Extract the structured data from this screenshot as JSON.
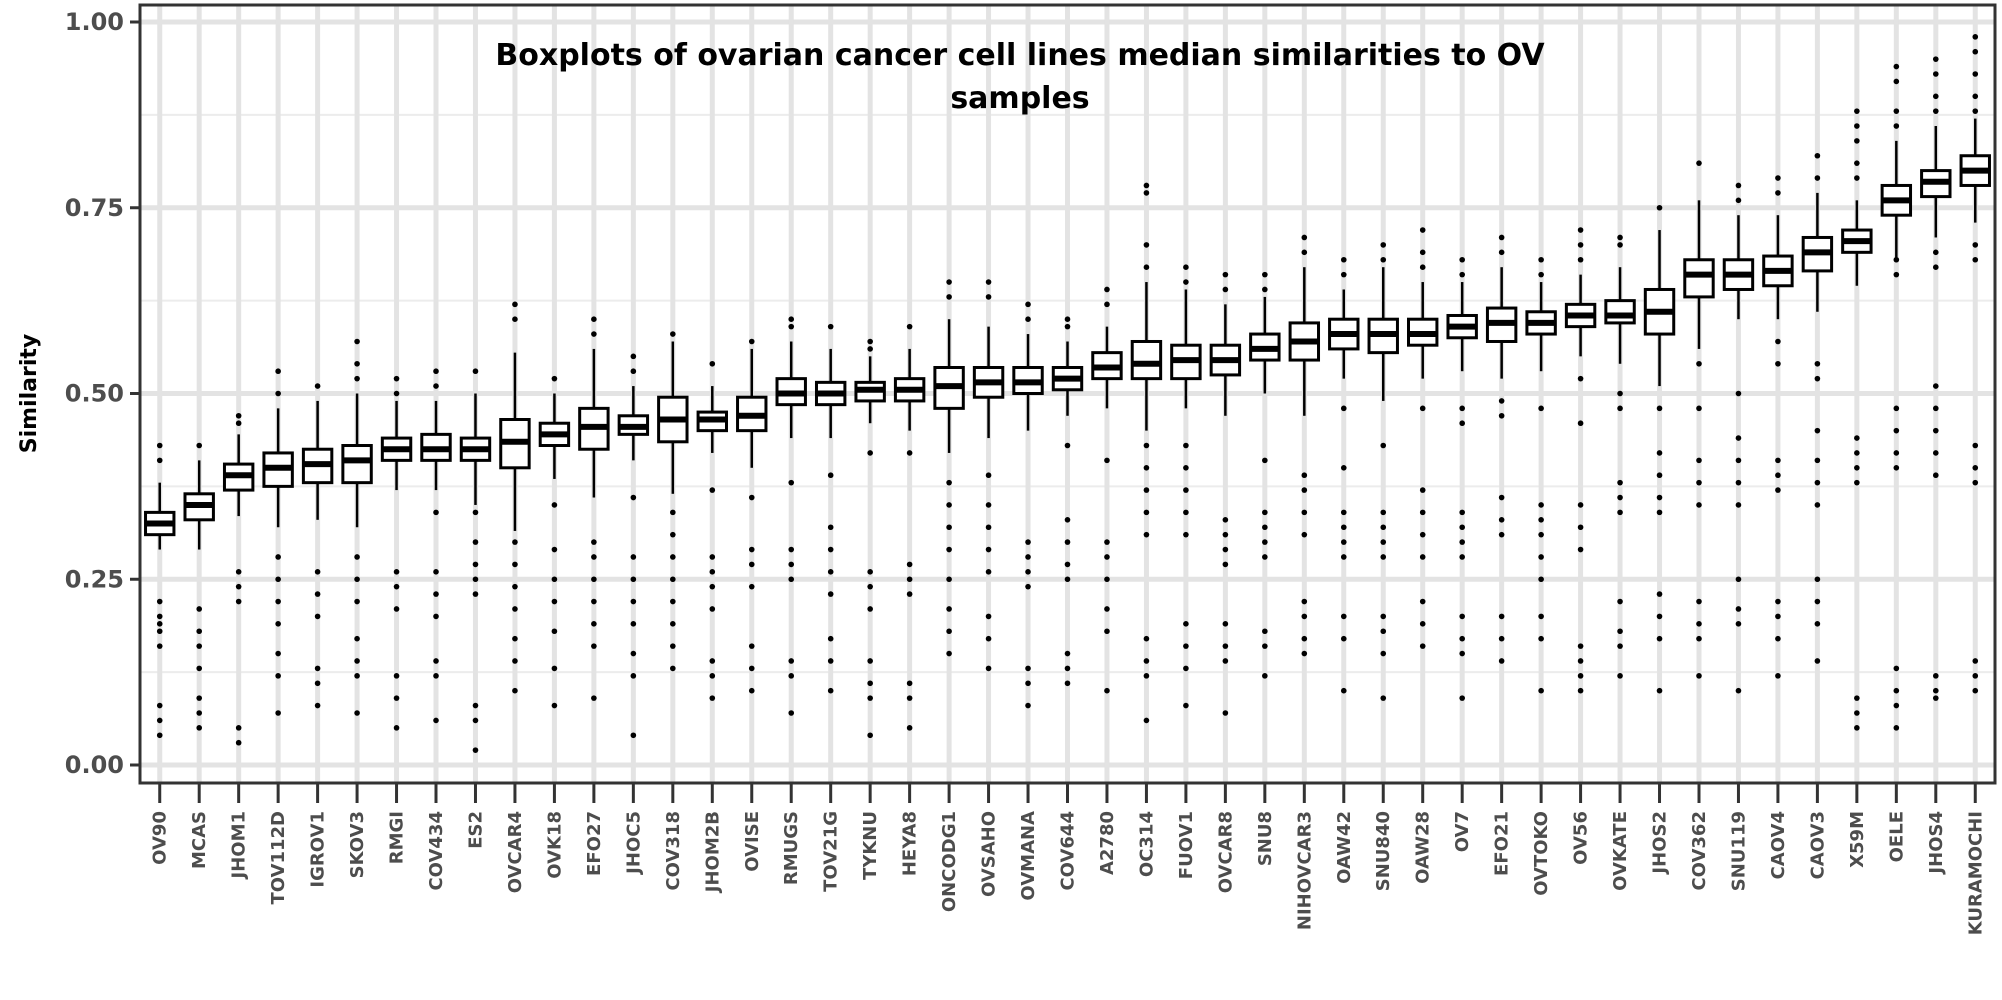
{
  "chart_data": {
    "type": "boxplot",
    "title_lines": [
      "Boxplots of ovarian cancer cell lines median similarities to OV",
      "samples"
    ],
    "xlabel": "",
    "ylabel": "Similarity",
    "ylim": [
      0,
      1
    ],
    "yticks": [
      0,
      0.25,
      0.5,
      0.75,
      1
    ],
    "ytick_labels": [
      "0.00",
      "0.25",
      "0.50",
      "0.75",
      "1.00"
    ],
    "grid": true,
    "categories": [
      "OV90",
      "MCAS",
      "JHOM1",
      "TOV112D",
      "IGROV1",
      "SKOV3",
      "RMGI",
      "COV434",
      "ES2",
      "OVCAR4",
      "OVK18",
      "EFO27",
      "JHOC5",
      "COV318",
      "JHOM2B",
      "OVISE",
      "RMUGS",
      "TOV21G",
      "TYKNU",
      "HEYA8",
      "ONCODG1",
      "OVSAHO",
      "OVMANA",
      "COV644",
      "A2780",
      "OC314",
      "FUOV1",
      "OVCAR8",
      "SNU8",
      "NIHOVCAR3",
      "OAW42",
      "SNU840",
      "OAW28",
      "OV7",
      "EFO21",
      "OVTOKO",
      "OV56",
      "OVKATE",
      "JHOS2",
      "COV362",
      "SNU119",
      "CAOV4",
      "CAOV3",
      "X59M",
      "OELE",
      "JHOS4",
      "KURAMOCHI"
    ],
    "boxes": [
      {
        "q1": 0.31,
        "median": 0.325,
        "q3": 0.34,
        "whislo": 0.29,
        "whishi": 0.38,
        "outliers": [
          0.43,
          0.41,
          0.22,
          0.2,
          0.19,
          0.18,
          0.16,
          0.08,
          0.06,
          0.04
        ]
      },
      {
        "q1": 0.33,
        "median": 0.35,
        "q3": 0.365,
        "whislo": 0.29,
        "whishi": 0.41,
        "outliers": [
          0.43,
          0.21,
          0.18,
          0.16,
          0.13,
          0.09,
          0.07,
          0.05
        ]
      },
      {
        "q1": 0.37,
        "median": 0.39,
        "q3": 0.405,
        "whislo": 0.335,
        "whishi": 0.445,
        "outliers": [
          0.47,
          0.46,
          0.26,
          0.24,
          0.22,
          0.05,
          0.03
        ]
      },
      {
        "q1": 0.375,
        "median": 0.4,
        "q3": 0.42,
        "whislo": 0.32,
        "whishi": 0.48,
        "outliers": [
          0.53,
          0.5,
          0.28,
          0.25,
          0.22,
          0.19,
          0.15,
          0.12,
          0.07
        ]
      },
      {
        "q1": 0.38,
        "median": 0.405,
        "q3": 0.425,
        "whislo": 0.33,
        "whishi": 0.49,
        "outliers": [
          0.51,
          0.26,
          0.23,
          0.2,
          0.13,
          0.11,
          0.08
        ]
      },
      {
        "q1": 0.38,
        "median": 0.41,
        "q3": 0.43,
        "whislo": 0.32,
        "whishi": 0.5,
        "outliers": [
          0.57,
          0.54,
          0.52,
          0.28,
          0.25,
          0.22,
          0.17,
          0.14,
          0.12,
          0.07
        ]
      },
      {
        "q1": 0.41,
        "median": 0.425,
        "q3": 0.44,
        "whislo": 0.37,
        "whishi": 0.49,
        "outliers": [
          0.52,
          0.5,
          0.26,
          0.24,
          0.21,
          0.12,
          0.09,
          0.05
        ]
      },
      {
        "q1": 0.41,
        "median": 0.425,
        "q3": 0.445,
        "whislo": 0.37,
        "whishi": 0.49,
        "outliers": [
          0.53,
          0.51,
          0.34,
          0.26,
          0.23,
          0.2,
          0.14,
          0.12,
          0.06
        ]
      },
      {
        "q1": 0.41,
        "median": 0.425,
        "q3": 0.44,
        "whislo": 0.35,
        "whishi": 0.5,
        "outliers": [
          0.53,
          0.34,
          0.3,
          0.27,
          0.25,
          0.23,
          0.08,
          0.06,
          0.02
        ]
      },
      {
        "q1": 0.4,
        "median": 0.435,
        "q3": 0.465,
        "whislo": 0.315,
        "whishi": 0.555,
        "outliers": [
          0.62,
          0.6,
          0.3,
          0.27,
          0.24,
          0.21,
          0.17,
          0.14,
          0.1
        ]
      },
      {
        "q1": 0.43,
        "median": 0.445,
        "q3": 0.46,
        "whislo": 0.385,
        "whishi": 0.5,
        "outliers": [
          0.52,
          0.35,
          0.29,
          0.25,
          0.22,
          0.18,
          0.13,
          0.08
        ]
      },
      {
        "q1": 0.425,
        "median": 0.455,
        "q3": 0.48,
        "whislo": 0.36,
        "whishi": 0.56,
        "outliers": [
          0.6,
          0.58,
          0.3,
          0.28,
          0.25,
          0.22,
          0.19,
          0.16,
          0.09
        ]
      },
      {
        "q1": 0.445,
        "median": 0.455,
        "q3": 0.47,
        "whislo": 0.41,
        "whishi": 0.51,
        "outliers": [
          0.55,
          0.53,
          0.36,
          0.28,
          0.25,
          0.22,
          0.19,
          0.15,
          0.12,
          0.04
        ]
      },
      {
        "q1": 0.435,
        "median": 0.465,
        "q3": 0.495,
        "whislo": 0.365,
        "whishi": 0.57,
        "outliers": [
          0.58,
          0.34,
          0.31,
          0.28,
          0.25,
          0.22,
          0.19,
          0.16,
          0.13
        ]
      },
      {
        "q1": 0.45,
        "median": 0.465,
        "q3": 0.475,
        "whislo": 0.42,
        "whishi": 0.51,
        "outliers": [
          0.54,
          0.37,
          0.28,
          0.26,
          0.24,
          0.21,
          0.14,
          0.12,
          0.09
        ]
      },
      {
        "q1": 0.45,
        "median": 0.47,
        "q3": 0.495,
        "whislo": 0.4,
        "whishi": 0.56,
        "outliers": [
          0.57,
          0.36,
          0.29,
          0.27,
          0.24,
          0.16,
          0.13,
          0.1
        ]
      },
      {
        "q1": 0.485,
        "median": 0.5,
        "q3": 0.52,
        "whislo": 0.44,
        "whishi": 0.57,
        "outliers": [
          0.6,
          0.59,
          0.38,
          0.29,
          0.27,
          0.25,
          0.14,
          0.12,
          0.07
        ]
      },
      {
        "q1": 0.485,
        "median": 0.5,
        "q3": 0.515,
        "whislo": 0.44,
        "whishi": 0.56,
        "outliers": [
          0.59,
          0.39,
          0.32,
          0.29,
          0.26,
          0.23,
          0.17,
          0.14,
          0.1
        ]
      },
      {
        "q1": 0.49,
        "median": 0.505,
        "q3": 0.515,
        "whislo": 0.46,
        "whishi": 0.55,
        "outliers": [
          0.57,
          0.56,
          0.42,
          0.26,
          0.24,
          0.21,
          0.14,
          0.11,
          0.09,
          0.04
        ]
      },
      {
        "q1": 0.49,
        "median": 0.505,
        "q3": 0.52,
        "whislo": 0.45,
        "whishi": 0.56,
        "outliers": [
          0.59,
          0.42,
          0.27,
          0.25,
          0.23,
          0.11,
          0.09,
          0.05
        ]
      },
      {
        "q1": 0.48,
        "median": 0.51,
        "q3": 0.535,
        "whislo": 0.42,
        "whishi": 0.6,
        "outliers": [
          0.65,
          0.63,
          0.38,
          0.35,
          0.32,
          0.29,
          0.25,
          0.21,
          0.18,
          0.15
        ]
      },
      {
        "q1": 0.495,
        "median": 0.515,
        "q3": 0.535,
        "whislo": 0.44,
        "whishi": 0.59,
        "outliers": [
          0.65,
          0.63,
          0.39,
          0.35,
          0.32,
          0.29,
          0.26,
          0.2,
          0.17,
          0.13
        ]
      },
      {
        "q1": 0.5,
        "median": 0.515,
        "q3": 0.535,
        "whislo": 0.45,
        "whishi": 0.58,
        "outliers": [
          0.62,
          0.6,
          0.3,
          0.28,
          0.26,
          0.24,
          0.13,
          0.11,
          0.08
        ]
      },
      {
        "q1": 0.505,
        "median": 0.52,
        "q3": 0.535,
        "whislo": 0.47,
        "whishi": 0.57,
        "outliers": [
          0.6,
          0.59,
          0.43,
          0.33,
          0.3,
          0.27,
          0.25,
          0.15,
          0.13,
          0.11
        ]
      },
      {
        "q1": 0.52,
        "median": 0.535,
        "q3": 0.555,
        "whislo": 0.48,
        "whishi": 0.59,
        "outliers": [
          0.64,
          0.62,
          0.41,
          0.3,
          0.28,
          0.25,
          0.21,
          0.18,
          0.1
        ]
      },
      {
        "q1": 0.52,
        "median": 0.54,
        "q3": 0.57,
        "whislo": 0.45,
        "whishi": 0.65,
        "outliers": [
          0.78,
          0.77,
          0.7,
          0.67,
          0.43,
          0.4,
          0.37,
          0.34,
          0.31,
          0.17,
          0.14,
          0.12,
          0.06
        ]
      },
      {
        "q1": 0.52,
        "median": 0.545,
        "q3": 0.565,
        "whislo": 0.48,
        "whishi": 0.64,
        "outliers": [
          0.67,
          0.65,
          0.43,
          0.4,
          0.37,
          0.34,
          0.31,
          0.19,
          0.16,
          0.13,
          0.08
        ]
      },
      {
        "q1": 0.525,
        "median": 0.545,
        "q3": 0.565,
        "whislo": 0.47,
        "whishi": 0.62,
        "outliers": [
          0.66,
          0.64,
          0.33,
          0.31,
          0.29,
          0.27,
          0.19,
          0.16,
          0.14,
          0.07
        ]
      },
      {
        "q1": 0.545,
        "median": 0.56,
        "q3": 0.58,
        "whislo": 0.5,
        "whishi": 0.63,
        "outliers": [
          0.66,
          0.64,
          0.41,
          0.34,
          0.32,
          0.3,
          0.28,
          0.18,
          0.16,
          0.12
        ]
      },
      {
        "q1": 0.545,
        "median": 0.57,
        "q3": 0.595,
        "whislo": 0.47,
        "whishi": 0.67,
        "outliers": [
          0.71,
          0.69,
          0.39,
          0.37,
          0.34,
          0.31,
          0.22,
          0.2,
          0.17,
          0.15
        ]
      },
      {
        "q1": 0.56,
        "median": 0.58,
        "q3": 0.6,
        "whislo": 0.52,
        "whishi": 0.64,
        "outliers": [
          0.68,
          0.66,
          0.48,
          0.4,
          0.34,
          0.32,
          0.3,
          0.28,
          0.2,
          0.17,
          0.1
        ]
      },
      {
        "q1": 0.555,
        "median": 0.58,
        "q3": 0.6,
        "whislo": 0.49,
        "whishi": 0.67,
        "outliers": [
          0.7,
          0.68,
          0.43,
          0.34,
          0.32,
          0.3,
          0.28,
          0.2,
          0.18,
          0.15,
          0.09
        ]
      },
      {
        "q1": 0.565,
        "median": 0.58,
        "q3": 0.6,
        "whislo": 0.52,
        "whishi": 0.65,
        "outliers": [
          0.72,
          0.69,
          0.67,
          0.48,
          0.37,
          0.34,
          0.31,
          0.28,
          0.22,
          0.19,
          0.16
        ]
      },
      {
        "q1": 0.575,
        "median": 0.59,
        "q3": 0.605,
        "whislo": 0.53,
        "whishi": 0.65,
        "outliers": [
          0.68,
          0.66,
          0.48,
          0.46,
          0.34,
          0.32,
          0.3,
          0.28,
          0.2,
          0.17,
          0.15,
          0.09
        ]
      },
      {
        "q1": 0.57,
        "median": 0.595,
        "q3": 0.615,
        "whislo": 0.52,
        "whishi": 0.67,
        "outliers": [
          0.71,
          0.69,
          0.49,
          0.47,
          0.36,
          0.33,
          0.31,
          0.2,
          0.17,
          0.14
        ]
      },
      {
        "q1": 0.58,
        "median": 0.595,
        "q3": 0.61,
        "whislo": 0.53,
        "whishi": 0.65,
        "outliers": [
          0.68,
          0.66,
          0.48,
          0.35,
          0.33,
          0.31,
          0.28,
          0.25,
          0.2,
          0.17,
          0.1
        ]
      },
      {
        "q1": 0.59,
        "median": 0.605,
        "q3": 0.62,
        "whislo": 0.55,
        "whishi": 0.66,
        "outliers": [
          0.72,
          0.7,
          0.68,
          0.52,
          0.46,
          0.35,
          0.32,
          0.29,
          0.16,
          0.14,
          0.12,
          0.1
        ]
      },
      {
        "q1": 0.595,
        "median": 0.605,
        "q3": 0.625,
        "whislo": 0.54,
        "whishi": 0.67,
        "outliers": [
          0.71,
          0.7,
          0.5,
          0.48,
          0.38,
          0.36,
          0.34,
          0.22,
          0.18,
          0.16,
          0.12
        ]
      },
      {
        "q1": 0.58,
        "median": 0.61,
        "q3": 0.64,
        "whislo": 0.51,
        "whishi": 0.72,
        "outliers": [
          0.75,
          0.48,
          0.42,
          0.39,
          0.36,
          0.34,
          0.23,
          0.2,
          0.17,
          0.1
        ]
      },
      {
        "q1": 0.63,
        "median": 0.66,
        "q3": 0.68,
        "whislo": 0.56,
        "whishi": 0.76,
        "outliers": [
          0.81,
          0.54,
          0.48,
          0.41,
          0.38,
          0.35,
          0.22,
          0.19,
          0.17,
          0.12
        ]
      },
      {
        "q1": 0.64,
        "median": 0.66,
        "q3": 0.68,
        "whislo": 0.6,
        "whishi": 0.74,
        "outliers": [
          0.78,
          0.76,
          0.5,
          0.44,
          0.41,
          0.38,
          0.35,
          0.25,
          0.21,
          0.19,
          0.1
        ]
      },
      {
        "q1": 0.645,
        "median": 0.665,
        "q3": 0.685,
        "whislo": 0.6,
        "whishi": 0.74,
        "outliers": [
          0.79,
          0.77,
          0.57,
          0.54,
          0.41,
          0.39,
          0.37,
          0.22,
          0.2,
          0.17,
          0.12
        ]
      },
      {
        "q1": 0.665,
        "median": 0.69,
        "q3": 0.71,
        "whislo": 0.61,
        "whishi": 0.77,
        "outliers": [
          0.82,
          0.79,
          0.54,
          0.52,
          0.45,
          0.41,
          0.38,
          0.35,
          0.25,
          0.22,
          0.19,
          0.14
        ]
      },
      {
        "q1": 0.69,
        "median": 0.705,
        "q3": 0.72,
        "whislo": 0.645,
        "whishi": 0.76,
        "outliers": [
          0.88,
          0.86,
          0.84,
          0.81,
          0.79,
          0.44,
          0.42,
          0.4,
          0.38,
          0.09,
          0.07,
          0.05
        ]
      },
      {
        "q1": 0.74,
        "median": 0.76,
        "q3": 0.78,
        "whislo": 0.68,
        "whishi": 0.84,
        "outliers": [
          0.94,
          0.92,
          0.88,
          0.86,
          0.68,
          0.66,
          0.48,
          0.45,
          0.42,
          0.4,
          0.13,
          0.1,
          0.08,
          0.05
        ]
      },
      {
        "q1": 0.765,
        "median": 0.785,
        "q3": 0.8,
        "whislo": 0.71,
        "whishi": 0.86,
        "outliers": [
          0.95,
          0.93,
          0.9,
          0.88,
          0.69,
          0.67,
          0.51,
          0.48,
          0.45,
          0.42,
          0.39,
          0.12,
          0.1,
          0.09
        ]
      },
      {
        "q1": 0.78,
        "median": 0.8,
        "q3": 0.82,
        "whislo": 0.73,
        "whishi": 0.87,
        "outliers": [
          0.98,
          0.96,
          0.93,
          0.9,
          0.88,
          0.7,
          0.68,
          0.43,
          0.4,
          0.38,
          0.14,
          0.12,
          0.1
        ]
      }
    ]
  }
}
